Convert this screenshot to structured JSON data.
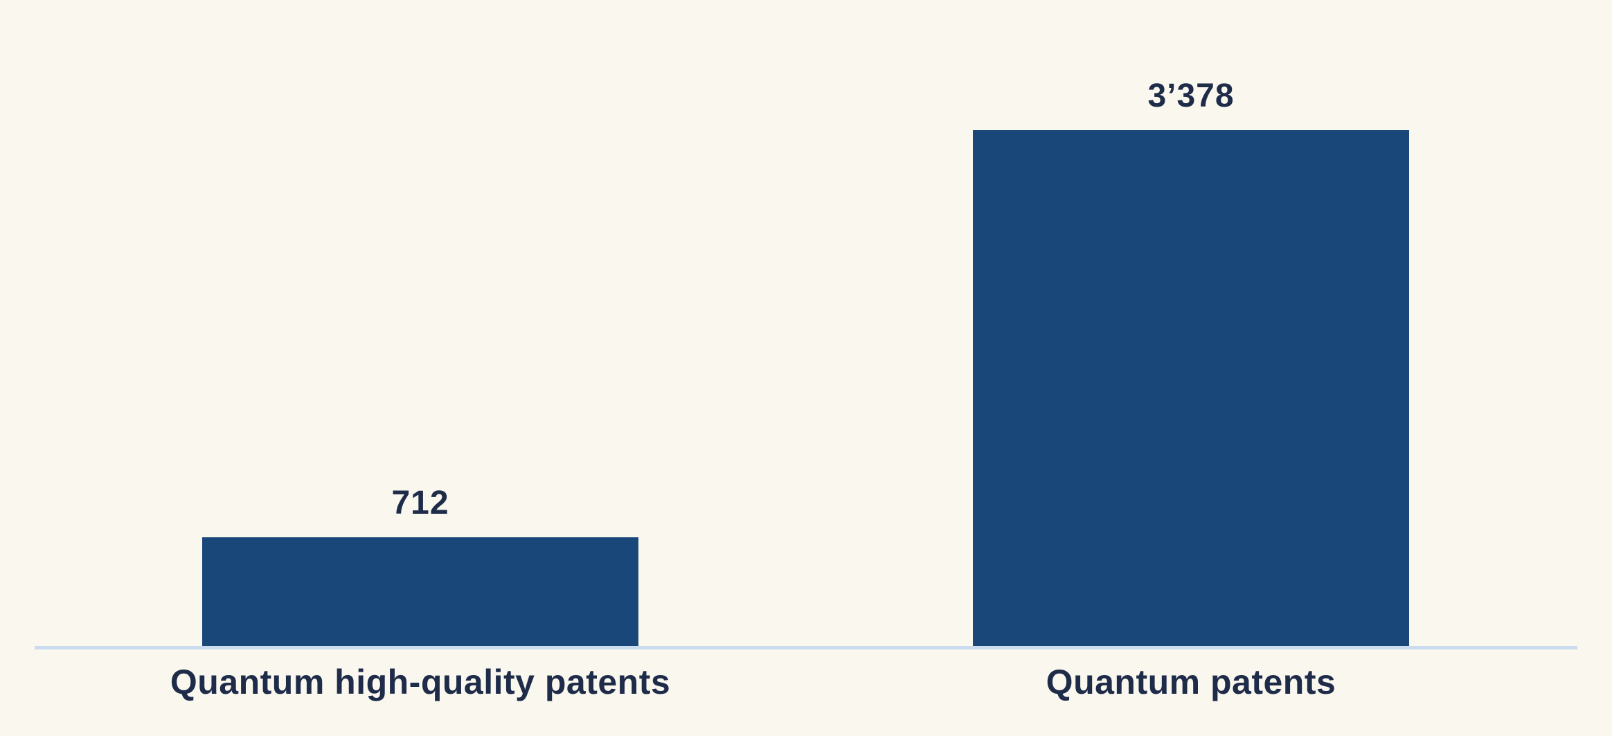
{
  "chart_data": {
    "type": "bar",
    "title": "",
    "xlabel": "",
    "ylabel": "",
    "categories": [
      "Quantum high-quality patents",
      "Quantum patents"
    ],
    "values": [
      712,
      3378
    ],
    "value_labels": [
      "712",
      "3’378"
    ],
    "ylim": [
      0,
      3378
    ],
    "grid": false,
    "legend": false,
    "orientation": "vertical",
    "bar_count": 2
  },
  "colors": {
    "background": "#f9f7ee",
    "bar_fill": "#1a4779",
    "label_text": "#1e2b49",
    "axis_line": "#ccdcf0"
  }
}
